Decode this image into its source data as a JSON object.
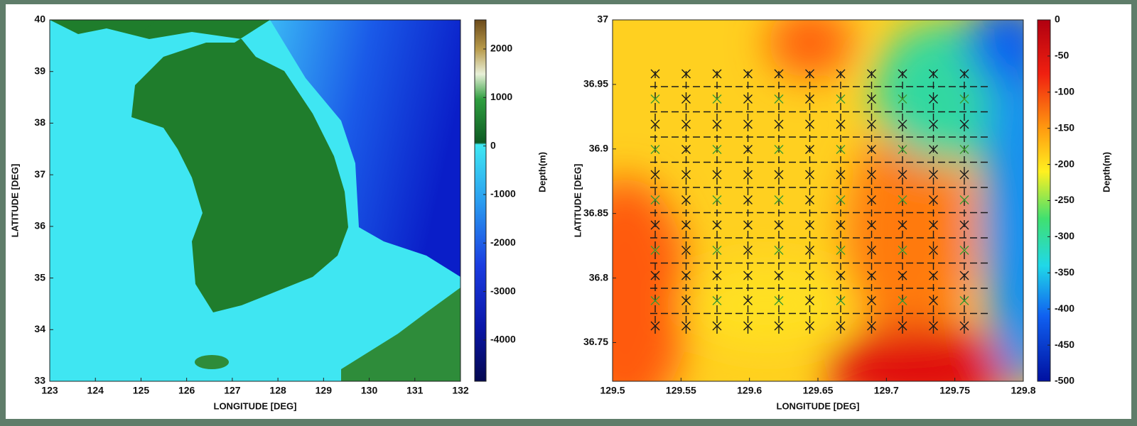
{
  "chart_data": [
    {
      "type": "map",
      "xlabel": "LONGITUDE [DEG]",
      "ylabel": "LATITUDE [DEG]",
      "xlim": [
        123,
        132
      ],
      "xticks": [
        123,
        124,
        125,
        126,
        127,
        128,
        129,
        130,
        131,
        132
      ],
      "ylim": [
        33,
        40
      ],
      "yticks": [
        33,
        34,
        35,
        36,
        37,
        38,
        39,
        40
      ],
      "colorbar": {
        "label": "Depth(m)",
        "lim": [
          -4850,
          2600
        ],
        "ticks": [
          2000,
          1000,
          0,
          -1000,
          -2000,
          -3000,
          -4000
        ]
      }
    },
    {
      "type": "map",
      "xlabel": "LONGITUDE [DEG]",
      "ylabel": "LATITUDE [DEG]",
      "xlim": [
        129.5,
        129.8
      ],
      "xticks": [
        129.5,
        129.55,
        129.6,
        129.65,
        129.7,
        129.75,
        129.8
      ],
      "ylim": [
        36.72,
        37
      ],
      "yticks": [
        36.75,
        36.8,
        36.85,
        36.9,
        36.95,
        37
      ],
      "colorbar": {
        "label": "Depth(m)",
        "lim": [
          -500,
          0
        ],
        "ticks": [
          0,
          -50,
          -100,
          -150,
          -200,
          -250,
          -300,
          -350,
          -400,
          -450,
          -500
        ]
      }
    }
  ]
}
